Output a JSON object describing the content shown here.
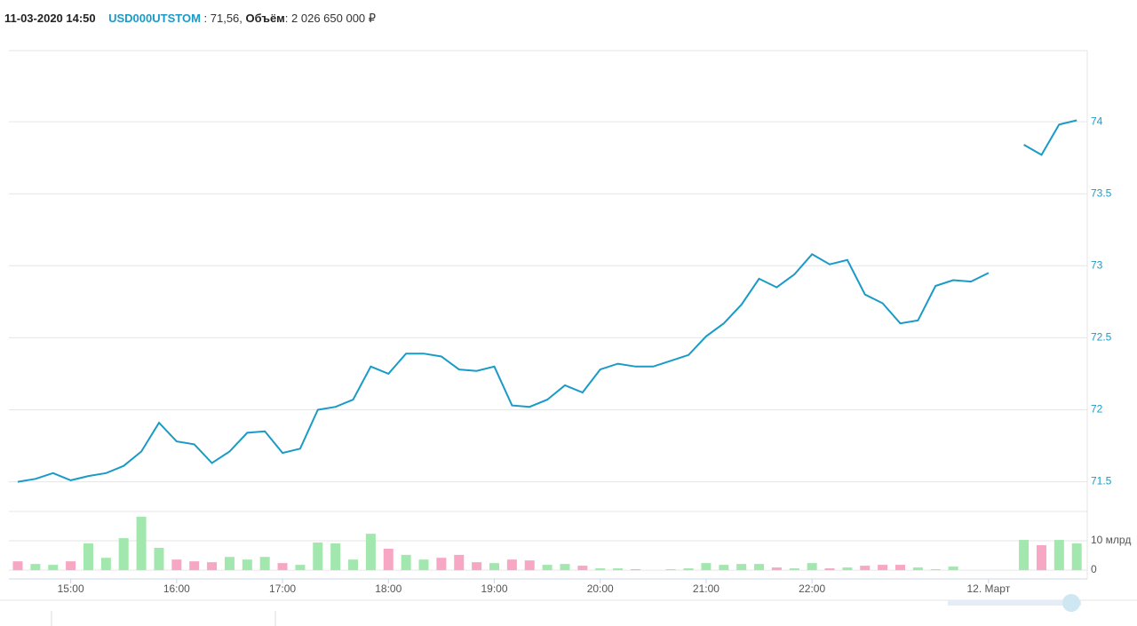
{
  "header": {
    "datetime": "11-03-2020 14:50",
    "ticker": "USD000UTSTOM",
    "price_text": " : 71,56, ",
    "volume_label": "Объём",
    "volume_text": ": 2 026 650 000 ₽"
  },
  "chart_data": [
    {
      "type": "line",
      "color": "#1a9bc7",
      "grid": true,
      "ylim": [
        71.3,
        74.5
      ],
      "yticks": [
        71.5,
        72,
        72.5,
        73,
        73.5,
        74
      ],
      "values": [
        71.5,
        71.52,
        71.56,
        71.51,
        71.54,
        71.56,
        71.61,
        71.71,
        71.91,
        71.78,
        71.76,
        71.63,
        71.71,
        71.84,
        71.85,
        71.7,
        71.73,
        72.0,
        72.02,
        72.07,
        72.3,
        72.25,
        72.39,
        72.39,
        72.37,
        72.28,
        72.27,
        72.3,
        72.03,
        72.02,
        72.07,
        72.17,
        72.12,
        72.28,
        72.32,
        72.3,
        72.3,
        72.34,
        72.38,
        72.51,
        72.6,
        72.73,
        72.91,
        72.85,
        72.94,
        73.08,
        73.01,
        73.04,
        72.8,
        72.74,
        72.6,
        72.62,
        72.86,
        72.9,
        72.89,
        72.95,
        null,
        73.84,
        73.77,
        73.98,
        74.01
      ]
    },
    {
      "type": "bar",
      "grid": true,
      "ylim": [
        -2.4,
        20
      ],
      "yticks": [
        0,
        {
          "value": 10,
          "label": "10 млрд"
        }
      ],
      "categories": [
        null,
        null,
        null,
        "15:00",
        null,
        null,
        null,
        null,
        null,
        "16:00",
        null,
        null,
        null,
        null,
        null,
        "17:00",
        null,
        null,
        null,
        null,
        null,
        "18:00",
        null,
        null,
        null,
        null,
        null,
        "19:00",
        null,
        null,
        null,
        null,
        null,
        "20:00",
        null,
        null,
        null,
        null,
        null,
        "21:00",
        null,
        null,
        null,
        null,
        null,
        "22:00",
        null,
        null,
        null,
        null,
        null,
        null,
        null,
        null,
        null,
        "12. Март",
        null,
        null,
        null,
        null,
        null
      ],
      "values": [
        3.0,
        2.1,
        1.8,
        3.0,
        9.1,
        4.2,
        10.9,
        18.2,
        7.6,
        3.6,
        3.0,
        2.7,
        4.5,
        3.6,
        4.5,
        2.4,
        1.8,
        9.4,
        9.1,
        3.6,
        12.4,
        7.3,
        5.2,
        3.6,
        4.2,
        5.2,
        2.7,
        2.4,
        3.6,
        3.3,
        1.8,
        2.1,
        1.5,
        0.6,
        0.6,
        0.3,
        null,
        0.3,
        0.6,
        2.4,
        1.8,
        2.1,
        2.1,
        0.9,
        0.6,
        2.4,
        0.6,
        0.9,
        1.5,
        1.8,
        1.8,
        0.9,
        0.3,
        1.2,
        null,
        null,
        null,
        10.3,
        8.5,
        10.3,
        9.1
      ],
      "colors": [
        "#f7a6c4",
        "#a2e8ae",
        "#a2e8ae",
        "#f7a6c4",
        "#a2e8ae",
        "#a2e8ae",
        "#a2e8ae",
        "#a2e8ae",
        "#a2e8ae",
        "#f7a6c4",
        "#f7a6c4",
        "#f7a6c4",
        "#a2e8ae",
        "#a2e8ae",
        "#a2e8ae",
        "#f7a6c4",
        "#a2e8ae",
        "#a2e8ae",
        "#a2e8ae",
        "#a2e8ae",
        "#a2e8ae",
        "#f7a6c4",
        "#a2e8ae",
        "#a2e8ae",
        "#f7a6c4",
        "#f7a6c4",
        "#f7a6c4",
        "#a2e8ae",
        "#f7a6c4",
        "#f7a6c4",
        "#a2e8ae",
        "#a2e8ae",
        "#f7a6c4",
        "#a2e8ae",
        "#a2e8ae",
        "#f7a6c4",
        null,
        "#a2e8ae",
        "#a2e8ae",
        "#a2e8ae",
        "#a2e8ae",
        "#a2e8ae",
        "#a2e8ae",
        "#f7a6c4",
        "#a2e8ae",
        "#a2e8ae",
        "#f7a6c4",
        "#a2e8ae",
        "#f7a6c4",
        "#f7a6c4",
        "#f7a6c4",
        "#a2e8ae",
        "#a2e8ae",
        "#a2e8ae",
        null,
        null,
        null,
        "#a2e8ae",
        "#f7a6c4",
        "#a2e8ae",
        "#a2e8ae"
      ]
    }
  ]
}
